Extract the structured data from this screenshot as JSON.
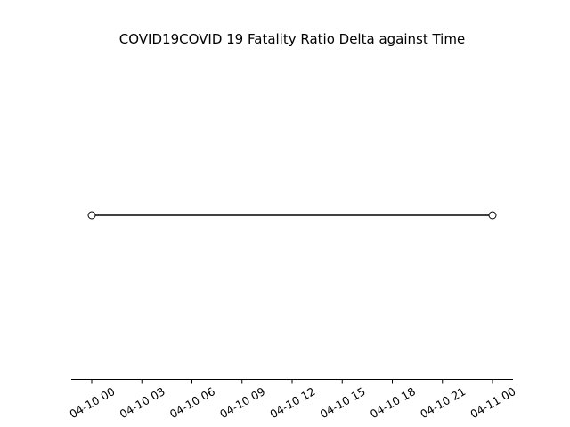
{
  "chart_data": {
    "type": "line",
    "title": "COVID19COVID 19 Fatality Ratio Delta against Time",
    "xlabel": "",
    "ylabel": "",
    "x_tick_labels": [
      "04-10 00",
      "04-10 03",
      "04-10 06",
      "04-10 09",
      "04-10 12",
      "04-10 15",
      "04-10 18",
      "04-10 21",
      "04-11 00"
    ],
    "x_range": [
      "04-10 00",
      "04-11 00"
    ],
    "grid": false,
    "legend": "none",
    "series": [
      {
        "x": [
          "04-10 00",
          "04-11 00"
        ],
        "y": [
          0,
          0
        ],
        "color": "#000000",
        "marker": "open-circle"
      }
    ]
  }
}
